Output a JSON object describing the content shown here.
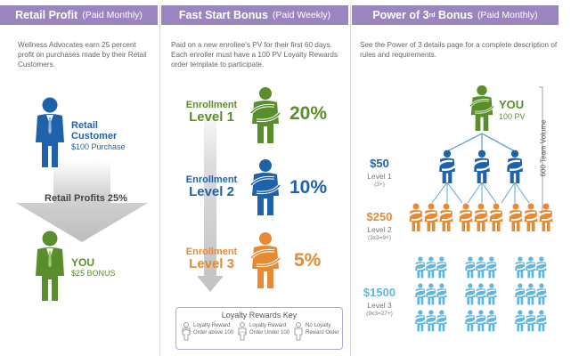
{
  "colors": {
    "header_purple": "#9a86bf",
    "blue": "#1f62aa",
    "green": "#5a8e2c",
    "orange": "#e68a35",
    "light_blue": "#5fb6e0",
    "gray_arrow": "#c9c9c9"
  },
  "panel1": {
    "title": "Retail Profit",
    "subtitle": "(Paid Monthly)",
    "description": "Wellness Advocates earn 25 percent profit on purchases made by their Retail Customers.",
    "customer_label_1": "Retail",
    "customer_label_2": "Customer",
    "customer_amount": "$100 Purchase",
    "arrow_label": "Retail Profits 25%",
    "you_label": "YOU",
    "you_bonus": "$25 BONUS"
  },
  "panel2": {
    "title": "Fast Start Bonus",
    "subtitle": "(Paid Weekly)",
    "description": "Paid on a new enrollee's PV for their first 60 days. Each enroller must have a 100 PV Loyalty Rewards order template to participate.",
    "levels": [
      {
        "line1": "Enrollment",
        "line2": "Level 1",
        "percent": "20%"
      },
      {
        "line1": "Enrollment",
        "line2": "Level 2",
        "percent": "10%"
      },
      {
        "line1": "Enrollment",
        "line2": "Level 3",
        "percent": "5%"
      }
    ],
    "key_title": "Loyalty Rewards Key",
    "key_items": [
      {
        "line1": "Loyalty Reward",
        "line2": "Order above 100"
      },
      {
        "line1": "Loyalty Reward",
        "line2": "Order Under 100"
      },
      {
        "line1": "No Loyalty",
        "line2": "Reward Order"
      }
    ]
  },
  "panel3": {
    "title": "Power of 3",
    "title_sup": "rd",
    "title_suffix": "Bonus",
    "subtitle": "(Paid Monthly)",
    "description": "See the Power of 3 details page for a complete description of rules and requirements.",
    "you_label": "YOU",
    "you_pv": "100 PV",
    "team_volume": "600 Team Volume",
    "levels": [
      {
        "amount": "$50",
        "name": "Level 1",
        "note": "(3+)"
      },
      {
        "amount": "$250",
        "name": "Level 2",
        "note": "(3x3=9+)"
      },
      {
        "amount": "$1500",
        "name": "Level 3",
        "note": "(9x3=27+)"
      }
    ]
  }
}
